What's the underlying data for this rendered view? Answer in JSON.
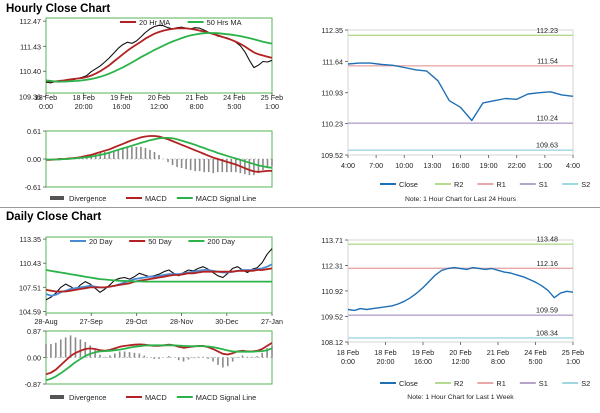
{
  "sections": {
    "hourly_title": "Hourly Close Chart",
    "daily_title": "Daily Close Chart"
  },
  "chart_data": [
    {
      "id": "hourly_price",
      "type": "line",
      "ylim": [
        109.5,
        112.6
      ],
      "yticks": [
        "112.47",
        "111.43",
        "110.40",
        "109.36"
      ],
      "ytick_values": [
        112.47,
        111.43,
        110.4,
        109.36
      ],
      "xticks": [
        "18 Feb\n0:00",
        "18 Feb\n20:00",
        "19 Feb\n16:00",
        "20 Feb\n12:00",
        "21 Feb\n8:00",
        "24 Feb\n5:00",
        "25 Feb\n1:00"
      ],
      "legend": [
        "20 Hr MA",
        "50 Hrs MA"
      ],
      "series": [
        {
          "name": "Close",
          "color": "#111111",
          "values": [
            109.95,
            109.92,
            109.97,
            109.95,
            110.0,
            110.05,
            110.05,
            110.1,
            110.15,
            110.22,
            110.38,
            110.5,
            110.62,
            110.78,
            110.95,
            111.15,
            111.35,
            111.5,
            111.6,
            111.55,
            111.65,
            111.82,
            112.0,
            112.15,
            112.25,
            112.3,
            112.28,
            112.2,
            112.15,
            112.2,
            112.22,
            112.18,
            112.15,
            112.2,
            112.18,
            112.1,
            112.0,
            111.95,
            111.85,
            111.82,
            111.78,
            111.7,
            111.6,
            111.45,
            111.2,
            110.85,
            110.55,
            110.65,
            110.8,
            110.78,
            110.85
          ]
        },
        {
          "name": "20 Hr MA",
          "color": "#b22222",
          "values": [
            110.0,
            109.98,
            109.98,
            110.0,
            110.02,
            110.05,
            110.08,
            110.1,
            110.12,
            110.16,
            110.22,
            110.3,
            110.4,
            110.52,
            110.65,
            110.8,
            110.95,
            111.1,
            111.25,
            111.38,
            111.5,
            111.62,
            111.75,
            111.85,
            111.95,
            112.02,
            112.08,
            112.12,
            112.15,
            112.17,
            112.18,
            112.17,
            112.15,
            112.12,
            112.08,
            112.04,
            111.99,
            111.94,
            111.88,
            111.82,
            111.76,
            111.7,
            111.62,
            111.53,
            111.42,
            111.3,
            111.18,
            111.1,
            111.05,
            111.0,
            110.95
          ]
        },
        {
          "name": "50 Hrs MA",
          "color": "#2bb34a",
          "values": [
            110.02,
            110.0,
            109.98,
            109.97,
            109.97,
            109.98,
            109.99,
            110.0,
            110.02,
            110.05,
            110.08,
            110.12,
            110.17,
            110.23,
            110.3,
            110.38,
            110.47,
            110.56,
            110.66,
            110.76,
            110.87,
            110.98,
            111.08,
            111.18,
            111.28,
            111.37,
            111.46,
            111.55,
            111.63,
            111.7,
            111.77,
            111.83,
            111.88,
            111.92,
            111.95,
            111.97,
            111.98,
            111.98,
            111.97,
            111.95,
            111.93,
            111.91,
            111.88,
            111.85,
            111.81,
            111.77,
            111.72,
            111.67,
            111.62,
            111.58,
            111.54
          ]
        }
      ]
    },
    {
      "id": "hourly_macd",
      "type": "line",
      "ylim": [
        -0.61,
        0.61
      ],
      "yticks": [
        "0.61",
        "0.00",
        "-0.61"
      ],
      "ytick_values": [
        0.61,
        0.0,
        -0.61
      ],
      "legend": [
        "Divergence",
        "MACD",
        "MACD Signal Line"
      ],
      "series": [
        {
          "name": "MACD",
          "color": "#b22222",
          "values": [
            -0.02,
            -0.02,
            -0.01,
            0.0,
            0.0,
            0.01,
            0.02,
            0.03,
            0.05,
            0.07,
            0.09,
            0.12,
            0.15,
            0.18,
            0.21,
            0.25,
            0.29,
            0.33,
            0.37,
            0.41,
            0.44,
            0.47,
            0.49,
            0.5,
            0.5,
            0.49,
            0.46,
            0.43,
            0.39,
            0.35,
            0.31,
            0.27,
            0.23,
            0.19,
            0.15,
            0.11,
            0.07,
            0.03,
            0.0,
            -0.03,
            -0.06,
            -0.09,
            -0.12,
            -0.16,
            -0.2,
            -0.24,
            -0.27,
            -0.28,
            -0.27,
            -0.26,
            -0.26
          ]
        },
        {
          "name": "MACD Signal Line",
          "color": "#2bb34a",
          "values": [
            -0.01,
            -0.01,
            -0.01,
            -0.01,
            0.0,
            0.0,
            0.01,
            0.02,
            0.03,
            0.04,
            0.05,
            0.07,
            0.09,
            0.11,
            0.14,
            0.17,
            0.2,
            0.23,
            0.26,
            0.29,
            0.32,
            0.35,
            0.38,
            0.41,
            0.43,
            0.45,
            0.46,
            0.46,
            0.45,
            0.43,
            0.4,
            0.37,
            0.34,
            0.31,
            0.27,
            0.24,
            0.2,
            0.17,
            0.13,
            0.1,
            0.07,
            0.04,
            0.01,
            -0.02,
            -0.05,
            -0.08,
            -0.11,
            -0.14,
            -0.16,
            -0.18,
            -0.19
          ]
        }
      ]
    },
    {
      "id": "hourly_levels",
      "type": "line",
      "ylim": [
        109.52,
        112.35
      ],
      "yticks": [
        "112.35",
        "111.64",
        "110.93",
        "110.23",
        "109.52"
      ],
      "ytick_values": [
        112.35,
        111.64,
        110.93,
        110.23,
        109.52
      ],
      "xticks": [
        "4:00",
        "7:00",
        "10:00",
        "13:00",
        "16:00",
        "19:00",
        "22:00",
        "1:00",
        "4:00"
      ],
      "legend": [
        "Close",
        "R2",
        "R1",
        "S1",
        "S2"
      ],
      "note": "Note: 1 Hour Chart for Last 24 Hours",
      "levels": [
        {
          "name": "R2",
          "value": 112.23,
          "label": "112.23",
          "color": "#b5d98f"
        },
        {
          "name": "R1",
          "value": 111.54,
          "label": "111.54",
          "color": "#e8a8a8"
        },
        {
          "name": "S1",
          "value": 110.24,
          "label": "110.24",
          "color": "#b5a3cc"
        },
        {
          "name": "S2",
          "value": 109.63,
          "label": "109.63",
          "color": "#9fd6e0"
        }
      ],
      "series": [
        {
          "name": "Close",
          "color": "#1f6fb5",
          "values": [
            111.58,
            111.6,
            111.6,
            111.57,
            111.55,
            111.5,
            111.45,
            111.42,
            111.2,
            110.75,
            110.6,
            110.3,
            110.7,
            110.75,
            110.8,
            110.78,
            110.9,
            110.93,
            110.95,
            110.88,
            110.85
          ]
        }
      ]
    },
    {
      "id": "daily_price",
      "type": "line",
      "ylim": [
        104.4,
        113.6
      ],
      "yticks": [
        "113.35",
        "110.43",
        "107.51",
        "104.59"
      ],
      "ytick_values": [
        113.35,
        110.43,
        107.51,
        104.59
      ],
      "xticks": [
        "28-Aug",
        "27-Sep",
        "29-Oct",
        "28-Nov",
        "30-Dec",
        "27-Jan"
      ],
      "legend": [
        "20 Day",
        "50 Day",
        "200 Day"
      ],
      "series": [
        {
          "name": "Close",
          "color": "#111111",
          "values": [
            106.0,
            106.3,
            106.8,
            107.5,
            107.9,
            107.6,
            107.2,
            107.8,
            108.2,
            107.9,
            107.4,
            106.9,
            107.3,
            107.8,
            108.4,
            108.6,
            108.7,
            108.5,
            108.8,
            109.2,
            109.0,
            108.8,
            108.9,
            109.1,
            109.4,
            109.6,
            109.2,
            108.9,
            109.3,
            109.6,
            109.5,
            109.8,
            110.0,
            109.7,
            109.3,
            108.9,
            108.7,
            109.2,
            109.8,
            110.0,
            109.6,
            109.3,
            109.7,
            109.9,
            110.5,
            111.5,
            112.2
          ]
        },
        {
          "name": "20 Day",
          "color": "#4a8bd4",
          "values": [
            106.7,
            106.5,
            106.6,
            106.9,
            107.1,
            107.3,
            107.4,
            107.5,
            107.6,
            107.7,
            107.6,
            107.5,
            107.5,
            107.6,
            107.7,
            107.9,
            108.1,
            108.3,
            108.5,
            108.6,
            108.7,
            108.8,
            108.8,
            108.9,
            109.0,
            109.1,
            109.1,
            109.1,
            109.2,
            109.3,
            109.4,
            109.5,
            109.6,
            109.6,
            109.5,
            109.4,
            109.3,
            109.3,
            109.4,
            109.5,
            109.6,
            109.6,
            109.6,
            109.7,
            109.8,
            110.0,
            110.3
          ]
        },
        {
          "name": "50 Day",
          "color": "#b22222",
          "values": [
            107.2,
            107.1,
            107.0,
            107.0,
            107.0,
            107.1,
            107.2,
            107.3,
            107.4,
            107.5,
            107.5,
            107.5,
            107.5,
            107.6,
            107.7,
            107.8,
            107.9,
            108.0,
            108.2,
            108.3,
            108.4,
            108.5,
            108.6,
            108.7,
            108.8,
            108.9,
            109.0,
            109.0,
            109.1,
            109.2,
            109.2,
            109.3,
            109.4,
            109.4,
            109.4,
            109.4,
            109.4,
            109.4,
            109.4,
            109.5,
            109.5,
            109.5,
            109.5,
            109.6,
            109.6,
            109.7,
            109.8
          ]
        },
        {
          "name": "200 Day",
          "color": "#2bb34a",
          "values": [
            109.6,
            109.5,
            109.4,
            109.3,
            109.2,
            109.1,
            109.0,
            108.9,
            108.8,
            108.7,
            108.6,
            108.5,
            108.45,
            108.4,
            108.35,
            108.3,
            108.28,
            108.25,
            108.23,
            108.22,
            108.2,
            108.2,
            108.2,
            108.2,
            108.2,
            108.2,
            108.2,
            108.2,
            108.2,
            108.2,
            108.2,
            108.2,
            108.2,
            108.2,
            108.2,
            108.2,
            108.2,
            108.2,
            108.2,
            108.2,
            108.2,
            108.2,
            108.2,
            108.2,
            108.2,
            108.2,
            108.2
          ]
        }
      ]
    },
    {
      "id": "daily_macd",
      "type": "line",
      "ylim": [
        -0.87,
        0.87
      ],
      "yticks": [
        "0.87",
        "0.00",
        "-0.87"
      ],
      "ytick_values": [
        0.87,
        0.0,
        -0.87
      ],
      "legend": [
        "Divergence",
        "MACD",
        "MACD Signal Line"
      ],
      "series": [
        {
          "name": "MACD",
          "color": "#b22222",
          "values": [
            -0.55,
            -0.5,
            -0.4,
            -0.25,
            -0.1,
            0.05,
            0.15,
            0.22,
            0.28,
            0.3,
            0.28,
            0.24,
            0.22,
            0.25,
            0.3,
            0.35,
            0.38,
            0.4,
            0.42,
            0.43,
            0.42,
            0.4,
            0.38,
            0.38,
            0.4,
            0.42,
            0.4,
            0.35,
            0.32,
            0.34,
            0.36,
            0.38,
            0.38,
            0.34,
            0.28,
            0.2,
            0.12,
            0.1,
            0.14,
            0.2,
            0.22,
            0.2,
            0.2,
            0.22,
            0.28,
            0.38,
            0.48
          ]
        },
        {
          "name": "MACD Signal Line",
          "color": "#2bb34a",
          "values": [
            -0.75,
            -0.7,
            -0.62,
            -0.52,
            -0.4,
            -0.28,
            -0.15,
            -0.05,
            0.05,
            0.12,
            0.17,
            0.2,
            0.21,
            0.22,
            0.24,
            0.26,
            0.29,
            0.32,
            0.35,
            0.37,
            0.39,
            0.4,
            0.4,
            0.4,
            0.4,
            0.4,
            0.4,
            0.39,
            0.38,
            0.37,
            0.37,
            0.37,
            0.37,
            0.36,
            0.34,
            0.31,
            0.27,
            0.23,
            0.2,
            0.19,
            0.19,
            0.19,
            0.19,
            0.2,
            0.21,
            0.24,
            0.3
          ]
        }
      ]
    },
    {
      "id": "daily_levels",
      "type": "line",
      "ylim": [
        108.12,
        113.71
      ],
      "yticks": [
        "113.71",
        "112.31",
        "110.92",
        "109.52",
        "108.12"
      ],
      "ytick_values": [
        113.71,
        112.31,
        110.92,
        109.52,
        108.12
      ],
      "xticks": [
        "18 Feb\n0:00",
        "18 Feb\n20:00",
        "19 Feb\n16:00",
        "20 Feb\n12:00",
        "21 Feb\n8:00",
        "24 Feb\n5:00",
        "25 Feb\n1:00"
      ],
      "legend": [
        "Close",
        "R2",
        "R1",
        "S1",
        "S2"
      ],
      "note": "Note: 1 Hour Chart for Last 1 Week",
      "levels": [
        {
          "name": "R2",
          "value": 113.48,
          "label": "113.48",
          "color": "#b5d98f"
        },
        {
          "name": "R1",
          "value": 112.16,
          "label": "112.16",
          "color": "#e8a8a8"
        },
        {
          "name": "S1",
          "value": 109.59,
          "label": "109.59",
          "color": "#b5a3cc"
        },
        {
          "name": "S2",
          "value": 108.34,
          "label": "108.34",
          "color": "#9fd6e0"
        }
      ],
      "series": [
        {
          "name": "Close",
          "color": "#1f6fb5",
          "values": [
            109.9,
            109.85,
            109.95,
            109.9,
            109.95,
            110.0,
            110.05,
            110.1,
            110.2,
            110.35,
            110.55,
            110.8,
            111.1,
            111.45,
            111.8,
            112.05,
            112.15,
            112.2,
            112.15,
            112.1,
            112.2,
            112.15,
            112.1,
            112.15,
            112.05,
            111.95,
            111.9,
            111.8,
            111.7,
            111.55,
            111.4,
            111.2,
            110.95,
            110.55,
            110.8,
            110.9,
            110.85
          ]
        }
      ]
    }
  ]
}
